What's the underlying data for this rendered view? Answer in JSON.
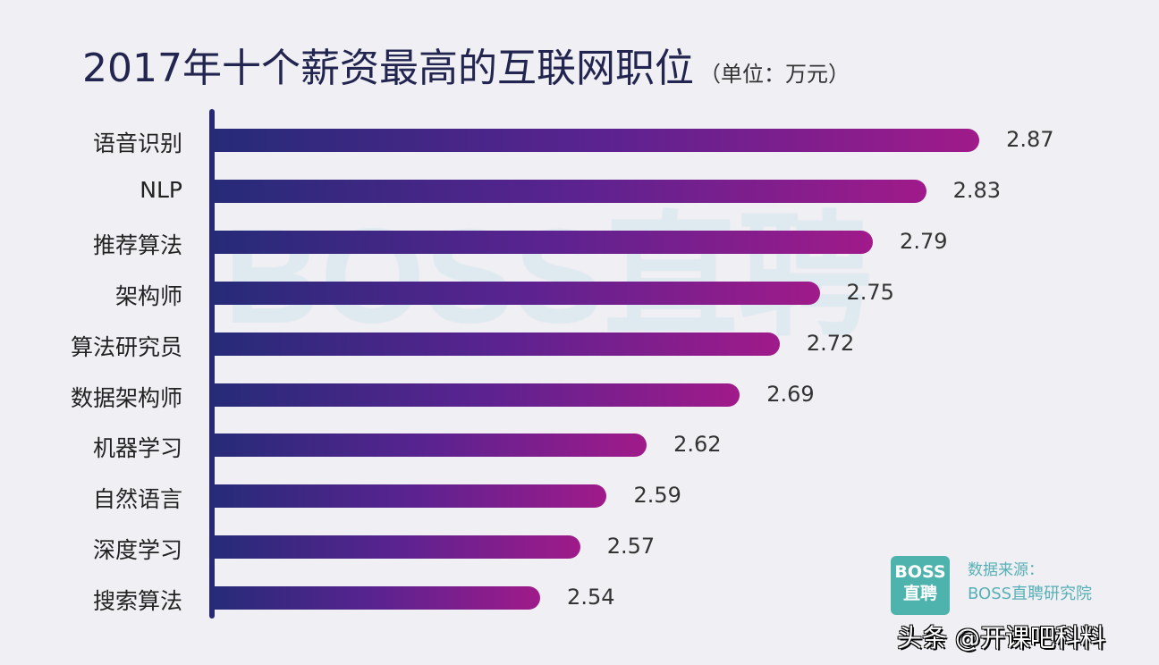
{
  "chart_data": {
    "type": "bar",
    "orientation": "horizontal",
    "title": "2017年十个薪资最高的互联网职位",
    "unit_note": "（单位：万元）",
    "categories": [
      "语音识别",
      "NLP",
      "推荐算法",
      "架构师",
      "算法研究员",
      "数据架构师",
      "机器学习",
      "自然语言",
      "深度学习",
      "搜索算法"
    ],
    "values": [
      2.87,
      2.83,
      2.79,
      2.75,
      2.72,
      2.69,
      2.62,
      2.59,
      2.57,
      2.54
    ],
    "data_labels": [
      "2.87",
      "2.83",
      "2.79",
      "2.75",
      "2.72",
      "2.69",
      "2.62",
      "2.59",
      "2.57",
      "2.54"
    ],
    "grid": false,
    "bar_gradient": [
      "#262b78",
      "#a01a8a"
    ]
  },
  "watermark": "BOSS直聘",
  "source": {
    "logo": "BOSS直聘",
    "label": "数据来源：",
    "name": "BOSS直聘研究院"
  },
  "credit": "头条 @开课吧科料"
}
